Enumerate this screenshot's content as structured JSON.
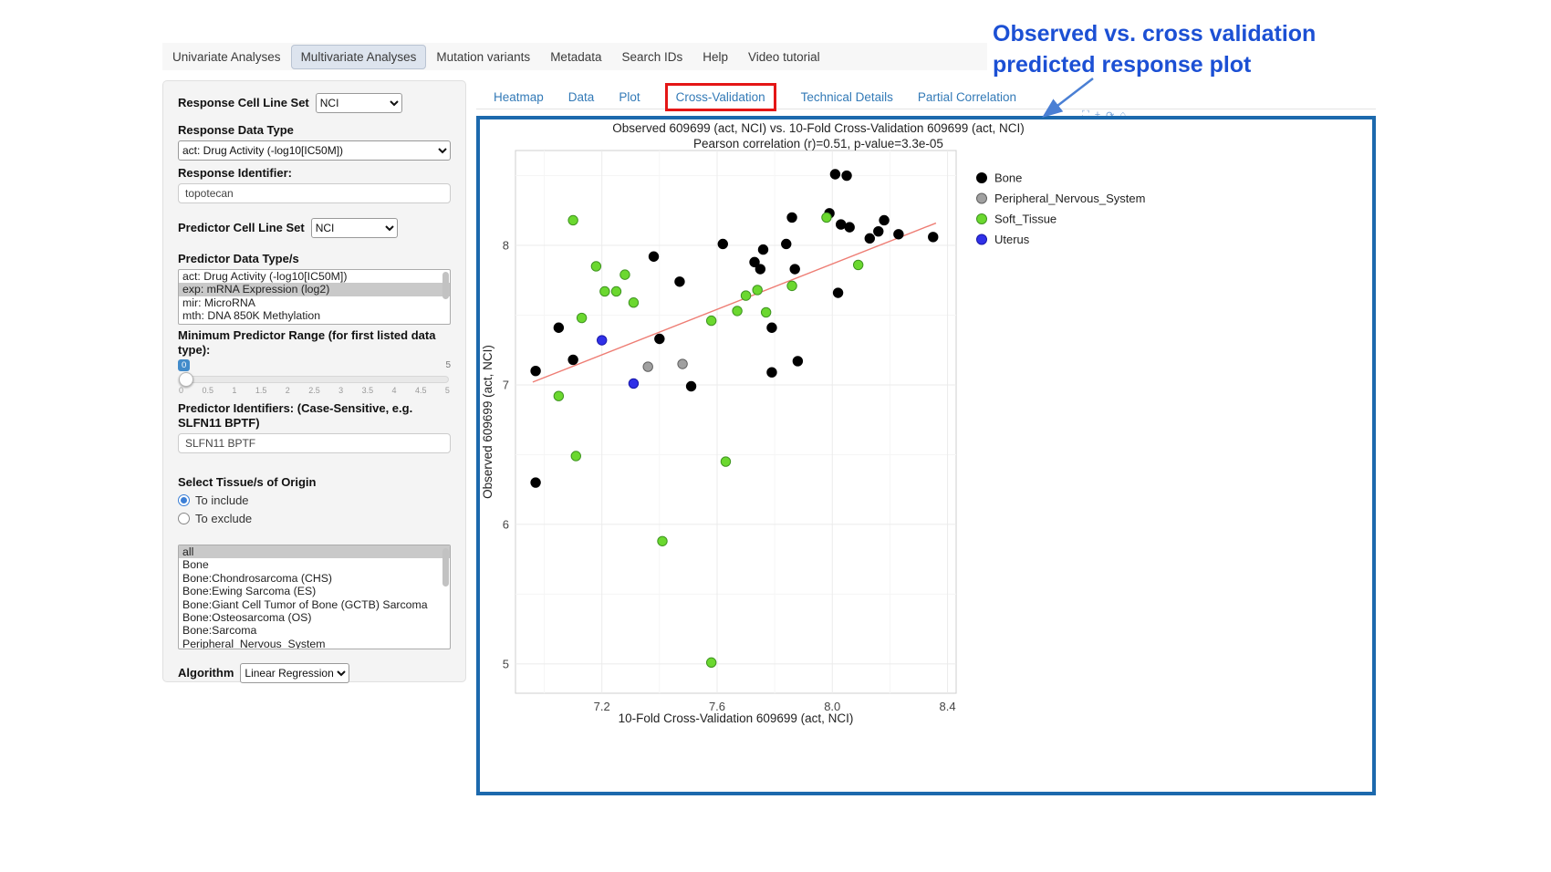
{
  "nav": {
    "items": [
      {
        "label": "Univariate Analyses",
        "active": false
      },
      {
        "label": "Multivariate Analyses",
        "active": true
      },
      {
        "label": "Mutation variants",
        "active": false
      },
      {
        "label": "Metadata",
        "active": false
      },
      {
        "label": "Search IDs",
        "active": false
      },
      {
        "label": "Help",
        "active": false
      },
      {
        "label": "Video tutorial",
        "active": false
      }
    ]
  },
  "sidebar": {
    "response_cell_line_set": {
      "label": "Response Cell Line Set",
      "value": "NCI"
    },
    "response_data_type": {
      "label": "Response Data Type",
      "value": "act: Drug Activity (-log10[IC50M])"
    },
    "response_identifier": {
      "label": "Response Identifier:",
      "value": "topotecan"
    },
    "predictor_cell_line_set": {
      "label": "Predictor Cell Line Set",
      "value": "NCI"
    },
    "predictor_data_types": {
      "label": "Predictor Data Type/s",
      "options": [
        {
          "label": "act: Drug Activity (-log10[IC50M])",
          "selected": false
        },
        {
          "label": "exp: mRNA Expression (log2)",
          "selected": true
        },
        {
          "label": "mir: MicroRNA",
          "selected": false
        },
        {
          "label": "mth: DNA 850K Methylation",
          "selected": false
        }
      ]
    },
    "min_predictor_range": {
      "label": "Minimum Predictor Range (for first listed data type):",
      "value": "0",
      "max_label": "5",
      "ticks": [
        "0",
        "0.5",
        "1",
        "1.5",
        "2",
        "2.5",
        "3",
        "3.5",
        "4",
        "4.5",
        "5"
      ]
    },
    "predictor_identifiers": {
      "label": "Predictor Identifiers: (Case-Sensitive, e.g. SLFN11 BPTF)",
      "value": "SLFN11 BPTF"
    },
    "tissue_origin": {
      "label": "Select Tissue/s of Origin",
      "radios": [
        {
          "label": "To include",
          "checked": true
        },
        {
          "label": "To exclude",
          "checked": false
        }
      ],
      "options": [
        {
          "label": "all",
          "selected": true
        },
        {
          "label": "Bone",
          "selected": false
        },
        {
          "label": "Bone:Chondrosarcoma (CHS)",
          "selected": false
        },
        {
          "label": "Bone:Ewing Sarcoma (ES)",
          "selected": false
        },
        {
          "label": "Bone:Giant Cell Tumor of Bone (GCTB) Sarcoma",
          "selected": false
        },
        {
          "label": "Bone:Osteosarcoma (OS)",
          "selected": false
        },
        {
          "label": "Bone:Sarcoma",
          "selected": false
        },
        {
          "label": "Peripheral_Nervous_System",
          "selected": false
        }
      ]
    },
    "algorithm": {
      "label": "Algorithm",
      "value": "Linear Regression"
    }
  },
  "main_tabs": {
    "items": [
      {
        "label": "Heatmap",
        "highlighted": false
      },
      {
        "label": "Data",
        "highlighted": false
      },
      {
        "label": "Plot",
        "highlighted": false
      },
      {
        "label": "Cross-Validation",
        "highlighted": true
      },
      {
        "label": "Technical Details",
        "highlighted": false
      },
      {
        "label": "Partial Correlation",
        "highlighted": false
      }
    ]
  },
  "modebar": {
    "icons": [
      {
        "name": "camera-icon",
        "glyph": "⛶"
      },
      {
        "name": "zoom-icon",
        "glyph": "+"
      },
      {
        "name": "reset-icon",
        "glyph": "⟳"
      },
      {
        "name": "home-icon",
        "glyph": "⌂"
      }
    ]
  },
  "annotation": {
    "line1": "Observed vs. cross validation",
    "line2": "predicted response plot",
    "color": "#1c50d4"
  },
  "chart_data": {
    "type": "scatter",
    "title": "Observed 609699 (act, NCI) vs. 10-Fold Cross-Validation 609699 (act, NCI)",
    "subtitle": "Pearson correlation (r)=0.51, p-value=3.3e-05",
    "xlabel": "10-Fold Cross-Validation 609699 (act, NCI)",
    "ylabel": "Observed 609699 (act, NCI)",
    "xlim": [
      6.9,
      8.43
    ],
    "ylim": [
      4.79,
      8.68
    ],
    "xticks": [
      7.2,
      7.6,
      8.0,
      8.4
    ],
    "xtick_labels": [
      "7.2",
      "7.6",
      "8.0",
      "8.4"
    ],
    "yticks": [
      5,
      6,
      7,
      8
    ],
    "ytick_labels": [
      "5",
      "6",
      "7",
      "8"
    ],
    "minor_xticks": [
      7.0,
      7.4,
      7.8,
      8.2
    ],
    "minor_yticks": [
      5.5,
      6.5,
      7.5,
      8.5
    ],
    "grid": true,
    "legend_position": "right",
    "trend_line": {
      "x1": 6.96,
      "y1": 7.02,
      "x2": 8.36,
      "y2": 8.16,
      "color": "#ee7d74"
    },
    "series": [
      {
        "name": "Bone",
        "color": "#000000",
        "stroke": "#000000",
        "points": [
          [
            6.97,
            6.3
          ],
          [
            6.97,
            7.1
          ],
          [
            7.05,
            7.41
          ],
          [
            7.1,
            7.18
          ],
          [
            7.38,
            7.92
          ],
          [
            7.4,
            7.33
          ],
          [
            7.47,
            7.74
          ],
          [
            7.51,
            6.99
          ],
          [
            7.62,
            8.01
          ],
          [
            7.73,
            7.88
          ],
          [
            7.75,
            7.83
          ],
          [
            7.76,
            7.97
          ],
          [
            7.79,
            7.41
          ],
          [
            7.79,
            7.09
          ],
          [
            7.84,
            8.01
          ],
          [
            7.86,
            8.2
          ],
          [
            7.87,
            7.83
          ],
          [
            7.88,
            7.17
          ],
          [
            7.99,
            8.23
          ],
          [
            8.01,
            8.51
          ],
          [
            8.03,
            8.15
          ],
          [
            8.05,
            8.5
          ],
          [
            8.06,
            8.13
          ],
          [
            8.02,
            7.66
          ],
          [
            8.13,
            8.05
          ],
          [
            8.16,
            8.1
          ],
          [
            8.18,
            8.18
          ],
          [
            8.23,
            8.08
          ],
          [
            8.35,
            8.06
          ]
        ]
      },
      {
        "name": "Peripheral_Nervous_System",
        "color": "#a0a0a0",
        "stroke": "#606060",
        "points": [
          [
            7.36,
            7.13
          ],
          [
            7.48,
            7.15
          ]
        ]
      },
      {
        "name": "Soft_Tissue",
        "color": "#6bd82f",
        "stroke": "#3f9420",
        "points": [
          [
            7.1,
            8.18
          ],
          [
            7.18,
            7.85
          ],
          [
            7.21,
            7.67
          ],
          [
            7.25,
            7.67
          ],
          [
            7.28,
            7.79
          ],
          [
            7.31,
            7.59
          ],
          [
            7.13,
            7.48
          ],
          [
            7.05,
            6.92
          ],
          [
            7.11,
            6.49
          ],
          [
            7.41,
            5.88
          ],
          [
            7.58,
            5.01
          ],
          [
            7.63,
            6.45
          ],
          [
            7.58,
            7.46
          ],
          [
            7.67,
            7.53
          ],
          [
            7.7,
            7.64
          ],
          [
            7.74,
            7.68
          ],
          [
            7.77,
            7.52
          ],
          [
            7.86,
            7.71
          ],
          [
            7.98,
            8.2
          ],
          [
            8.09,
            7.86
          ]
        ]
      },
      {
        "name": "Uterus",
        "color": "#3030e8",
        "stroke": "#1818a8",
        "points": [
          [
            7.2,
            7.32
          ],
          [
            7.31,
            7.01
          ]
        ]
      }
    ]
  }
}
